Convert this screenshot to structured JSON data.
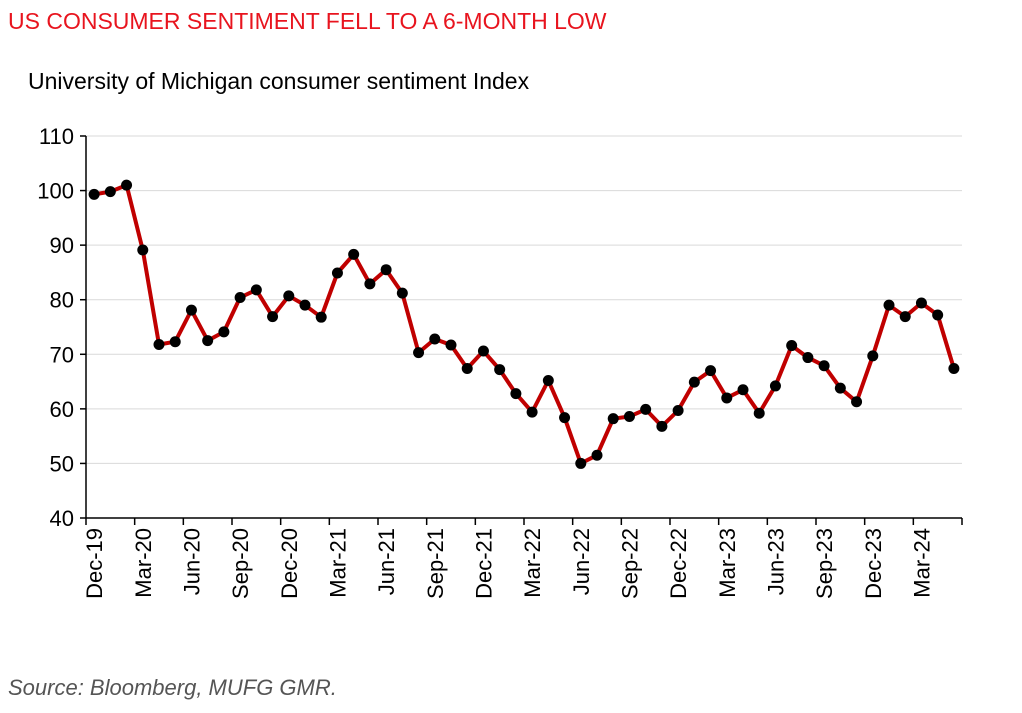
{
  "header": {
    "headline": "US CONSUMER SENTIMENT FELL TO A 6-MONTH LOW",
    "subtitle": "University of Michigan consumer sentiment Index"
  },
  "footer": {
    "source": "Source: Bloomberg, MUFG GMR."
  },
  "chart_data": {
    "type": "line",
    "title": "University of Michigan consumer sentiment Index",
    "ylim": [
      40,
      110
    ],
    "yticks": [
      40,
      50,
      60,
      70,
      80,
      90,
      100,
      110
    ],
    "grid": true,
    "legend": "none",
    "colors": {
      "line": "#c00000",
      "marker": "#000000",
      "grid": "#d9d9d9"
    },
    "x_tick_labels": [
      "Dec-19",
      "Mar-20",
      "Jun-20",
      "Sep-20",
      "Dec-20",
      "Mar-21",
      "Jun-21",
      "Sep-21",
      "Dec-21",
      "Mar-22",
      "Jun-22",
      "Sep-22",
      "Dec-22",
      "Mar-23",
      "Jun-23",
      "Sep-23",
      "Dec-23",
      "Mar-24"
    ],
    "x": [
      "Dec-19",
      "Jan-20",
      "Feb-20",
      "Mar-20",
      "Apr-20",
      "May-20",
      "Jun-20",
      "Jul-20",
      "Aug-20",
      "Sep-20",
      "Oct-20",
      "Nov-20",
      "Dec-20",
      "Jan-21",
      "Feb-21",
      "Mar-21",
      "Apr-21",
      "May-21",
      "Jun-21",
      "Jul-21",
      "Aug-21",
      "Sep-21",
      "Oct-21",
      "Nov-21",
      "Dec-21",
      "Jan-22",
      "Feb-22",
      "Mar-22",
      "Apr-22",
      "May-22",
      "Jun-22",
      "Jul-22",
      "Aug-22",
      "Sep-22",
      "Oct-22",
      "Nov-22",
      "Dec-22",
      "Jan-23",
      "Feb-23",
      "Mar-23",
      "Apr-23",
      "May-23",
      "Jun-23",
      "Jul-23",
      "Aug-23",
      "Sep-23",
      "Oct-23",
      "Nov-23",
      "Dec-23",
      "Jan-24",
      "Feb-24",
      "Mar-24",
      "Apr-24",
      "May-24"
    ],
    "series": [
      {
        "values": [
          99.3,
          99.8,
          101.0,
          89.1,
          71.8,
          72.3,
          78.1,
          72.5,
          74.1,
          80.4,
          81.8,
          76.9,
          80.7,
          79.0,
          76.8,
          84.9,
          88.3,
          82.9,
          85.5,
          81.2,
          70.3,
          72.8,
          71.7,
          67.4,
          70.6,
          67.2,
          62.8,
          59.4,
          65.2,
          58.4,
          50.0,
          51.5,
          58.2,
          58.6,
          59.9,
          56.8,
          59.7,
          64.9,
          67.0,
          62.0,
          63.5,
          59.2,
          64.2,
          71.6,
          69.4,
          67.9,
          63.8,
          61.3,
          69.7,
          79.0,
          76.9,
          79.4,
          77.2,
          67.4
        ]
      }
    ]
  }
}
